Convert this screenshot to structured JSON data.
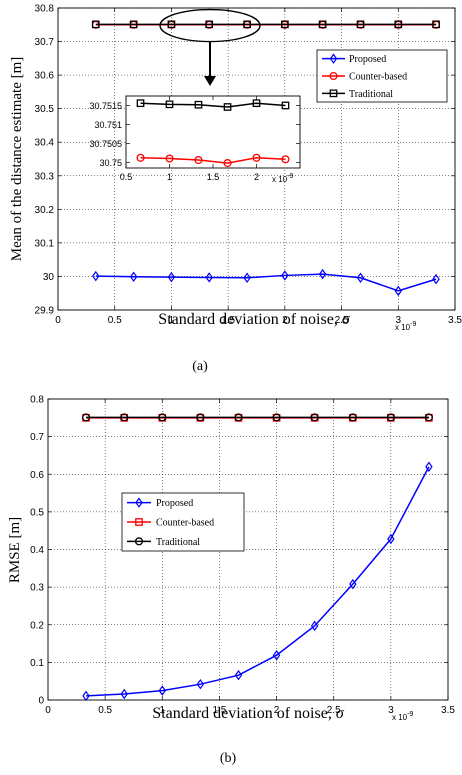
{
  "chart_data": [
    {
      "type": "line",
      "caption": "(a)",
      "xlabel": "Standard deviation of noise, σ",
      "ylabel": "Mean of the distance estimate [m]",
      "x_multiplier": "x 10",
      "x_multiplier_exp": "-9",
      "xlim": [
        0,
        3.5
      ],
      "ylim": [
        29.9,
        30.8
      ],
      "xticks": [
        "0",
        "0.5",
        "1",
        "1.5",
        "2",
        "2.5",
        "3",
        "3.5"
      ],
      "yticks": [
        "29.9",
        "30",
        "30.1",
        "30.2",
        "30.3",
        "30.4",
        "30.5",
        "30.6",
        "30.7",
        "30.8"
      ],
      "grid": true,
      "legend_position": "top-right",
      "x": [
        0.333,
        0.667,
        1.0,
        1.333,
        1.667,
        2.0,
        2.333,
        2.667,
        3.0,
        3.333
      ],
      "series": [
        {
          "name": "Proposed",
          "color": "#0000ff",
          "marker": "diamond",
          "values": [
            30.001,
            29.999,
            29.998,
            29.997,
            29.996,
            30.003,
            30.007,
            29.996,
            29.957,
            29.992
          ]
        },
        {
          "name": "Counter-based",
          "color": "#ff0000",
          "marker": "circle",
          "values": [
            30.75,
            30.75,
            30.75,
            30.75,
            30.75,
            30.75,
            30.75,
            30.75,
            30.75,
            30.75
          ]
        },
        {
          "name": "Traditional",
          "color": "#000000",
          "marker": "square",
          "values": [
            30.7513,
            30.7513,
            30.7513,
            30.7513,
            30.7513,
            30.7513,
            30.7513,
            30.7513,
            30.7513,
            30.7513
          ]
        }
      ],
      "inset": {
        "xlim": [
          0.5,
          2.5
        ],
        "ylim": [
          30.74985,
          30.75175
        ],
        "xticks": [
          "0.5",
          "1",
          "1.5",
          "2"
        ],
        "yticks": [
          "30.75",
          "30.7505",
          "30.751",
          "30.7515"
        ],
        "x_multiplier": "x 10",
        "x_multiplier_exp": "-9",
        "x": [
          0.667,
          1.0,
          1.333,
          1.667,
          2.0,
          2.333
        ],
        "series": [
          {
            "name": "Traditional",
            "color": "#000000",
            "marker": "square",
            "values": [
              30.75156,
              30.75153,
              30.75152,
              30.75146,
              30.75156,
              30.7515
            ]
          },
          {
            "name": "Counter-based",
            "color": "#ff0000",
            "marker": "circle",
            "values": [
              30.75012,
              30.7501,
              30.75006,
              30.74998,
              30.75012,
              30.75008
            ]
          }
        ]
      }
    },
    {
      "type": "line",
      "caption": "(b)",
      "xlabel": "Standard deviation of noise, σ",
      "ylabel": "RMSE [m]",
      "x_multiplier": "x 10",
      "x_multiplier_exp": "-9",
      "xlim": [
        0,
        3.5
      ],
      "ylim": [
        0,
        0.8
      ],
      "xticks": [
        "0",
        "0.5",
        "1",
        "1.5",
        "2",
        "2.5",
        "3",
        "3.5"
      ],
      "yticks": [
        "0",
        "0.1",
        "0.2",
        "0.3",
        "0.4",
        "0.5",
        "0.6",
        "0.7",
        "0.8"
      ],
      "grid": true,
      "legend_position": "center-left",
      "x": [
        0.333,
        0.667,
        1.0,
        1.333,
        1.667,
        2.0,
        2.333,
        2.667,
        3.0,
        3.333
      ],
      "series": [
        {
          "name": "Proposed",
          "color": "#0000ff",
          "marker": "diamond",
          "values": [
            0.011,
            0.016,
            0.025,
            0.042,
            0.066,
            0.119,
            0.197,
            0.308,
            0.428,
            0.62
          ]
        },
        {
          "name": "Counter-based",
          "color": "#ff0000",
          "marker": "square",
          "values": [
            0.75,
            0.75,
            0.75,
            0.75,
            0.75,
            0.75,
            0.75,
            0.75,
            0.75,
            0.75
          ]
        },
        {
          "name": "Traditional",
          "color": "#000000",
          "marker": "circle",
          "values": [
            0.751,
            0.751,
            0.751,
            0.751,
            0.751,
            0.751,
            0.751,
            0.751,
            0.751,
            0.751
          ]
        }
      ]
    }
  ]
}
